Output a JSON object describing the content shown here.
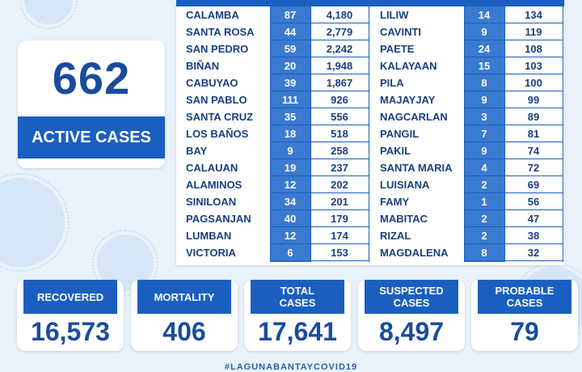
{
  "active": {
    "count": "662",
    "label": "ACTIVE CASES"
  },
  "table": {
    "left": [
      {
        "name": "CALAMBA",
        "active": "87",
        "total": "4,180"
      },
      {
        "name": "SANTA ROSA",
        "active": "44",
        "total": "2,779"
      },
      {
        "name": "SAN PEDRO",
        "active": "59",
        "total": "2,242"
      },
      {
        "name": "BIÑAN",
        "active": "20",
        "total": "1,948"
      },
      {
        "name": "CABUYAO",
        "active": "39",
        "total": "1,867"
      },
      {
        "name": "SAN PABLO",
        "active": "111",
        "total": "926"
      },
      {
        "name": "SANTA CRUZ",
        "active": "35",
        "total": "556"
      },
      {
        "name": "LOS BAÑOS",
        "active": "18",
        "total": "518"
      },
      {
        "name": "BAY",
        "active": "9",
        "total": "258"
      },
      {
        "name": "CALAUAN",
        "active": "19",
        "total": "237"
      },
      {
        "name": "ALAMINOS",
        "active": "12",
        "total": "202"
      },
      {
        "name": "SINILOAN",
        "active": "34",
        "total": "201"
      },
      {
        "name": "PAGSANJAN",
        "active": "40",
        "total": "179"
      },
      {
        "name": "LUMBAN",
        "active": "12",
        "total": "174"
      },
      {
        "name": "VICTORIA",
        "active": "6",
        "total": "153"
      }
    ],
    "right": [
      {
        "name": "LILIW",
        "active": "14",
        "total": "134"
      },
      {
        "name": "CAVINTI",
        "active": "9",
        "total": "119"
      },
      {
        "name": "PAETE",
        "active": "24",
        "total": "108"
      },
      {
        "name": "KALAYAAN",
        "active": "15",
        "total": "103"
      },
      {
        "name": "PILA",
        "active": "8",
        "total": "100"
      },
      {
        "name": "MAJAYJAY",
        "active": "9",
        "total": "99"
      },
      {
        "name": "NAGCARLAN",
        "active": "3",
        "total": "89"
      },
      {
        "name": "PANGIL",
        "active": "7",
        "total": "81"
      },
      {
        "name": "PAKIL",
        "active": "9",
        "total": "74"
      },
      {
        "name": "SANTA MARIA",
        "active": "4",
        "total": "72"
      },
      {
        "name": "LUISIANA",
        "active": "2",
        "total": "69"
      },
      {
        "name": "FAMY",
        "active": "1",
        "total": "56"
      },
      {
        "name": "MABITAC",
        "active": "2",
        "total": "47"
      },
      {
        "name": "RIZAL",
        "active": "2",
        "total": "38"
      },
      {
        "name": "MAGDALENA",
        "active": "8",
        "total": "32"
      }
    ]
  },
  "stats": {
    "recovered": {
      "label": "RECOVERED",
      "value": "16,573"
    },
    "mortality": {
      "label": "MORTALITY",
      "value": "406"
    },
    "total": {
      "label": "TOTAL\nCASES",
      "value": "17,641"
    },
    "suspected": {
      "label": "SUSPECTED\nCASES",
      "value": "8,497"
    },
    "probable": {
      "label": "PROBABLE\nCASES",
      "value": "79"
    }
  },
  "hashtag": "#LAGUNABANTAYCOVID19",
  "colors": {
    "accent": "#1a5fc0",
    "text": "#1a4c9c",
    "background": "#e9f2fb"
  }
}
